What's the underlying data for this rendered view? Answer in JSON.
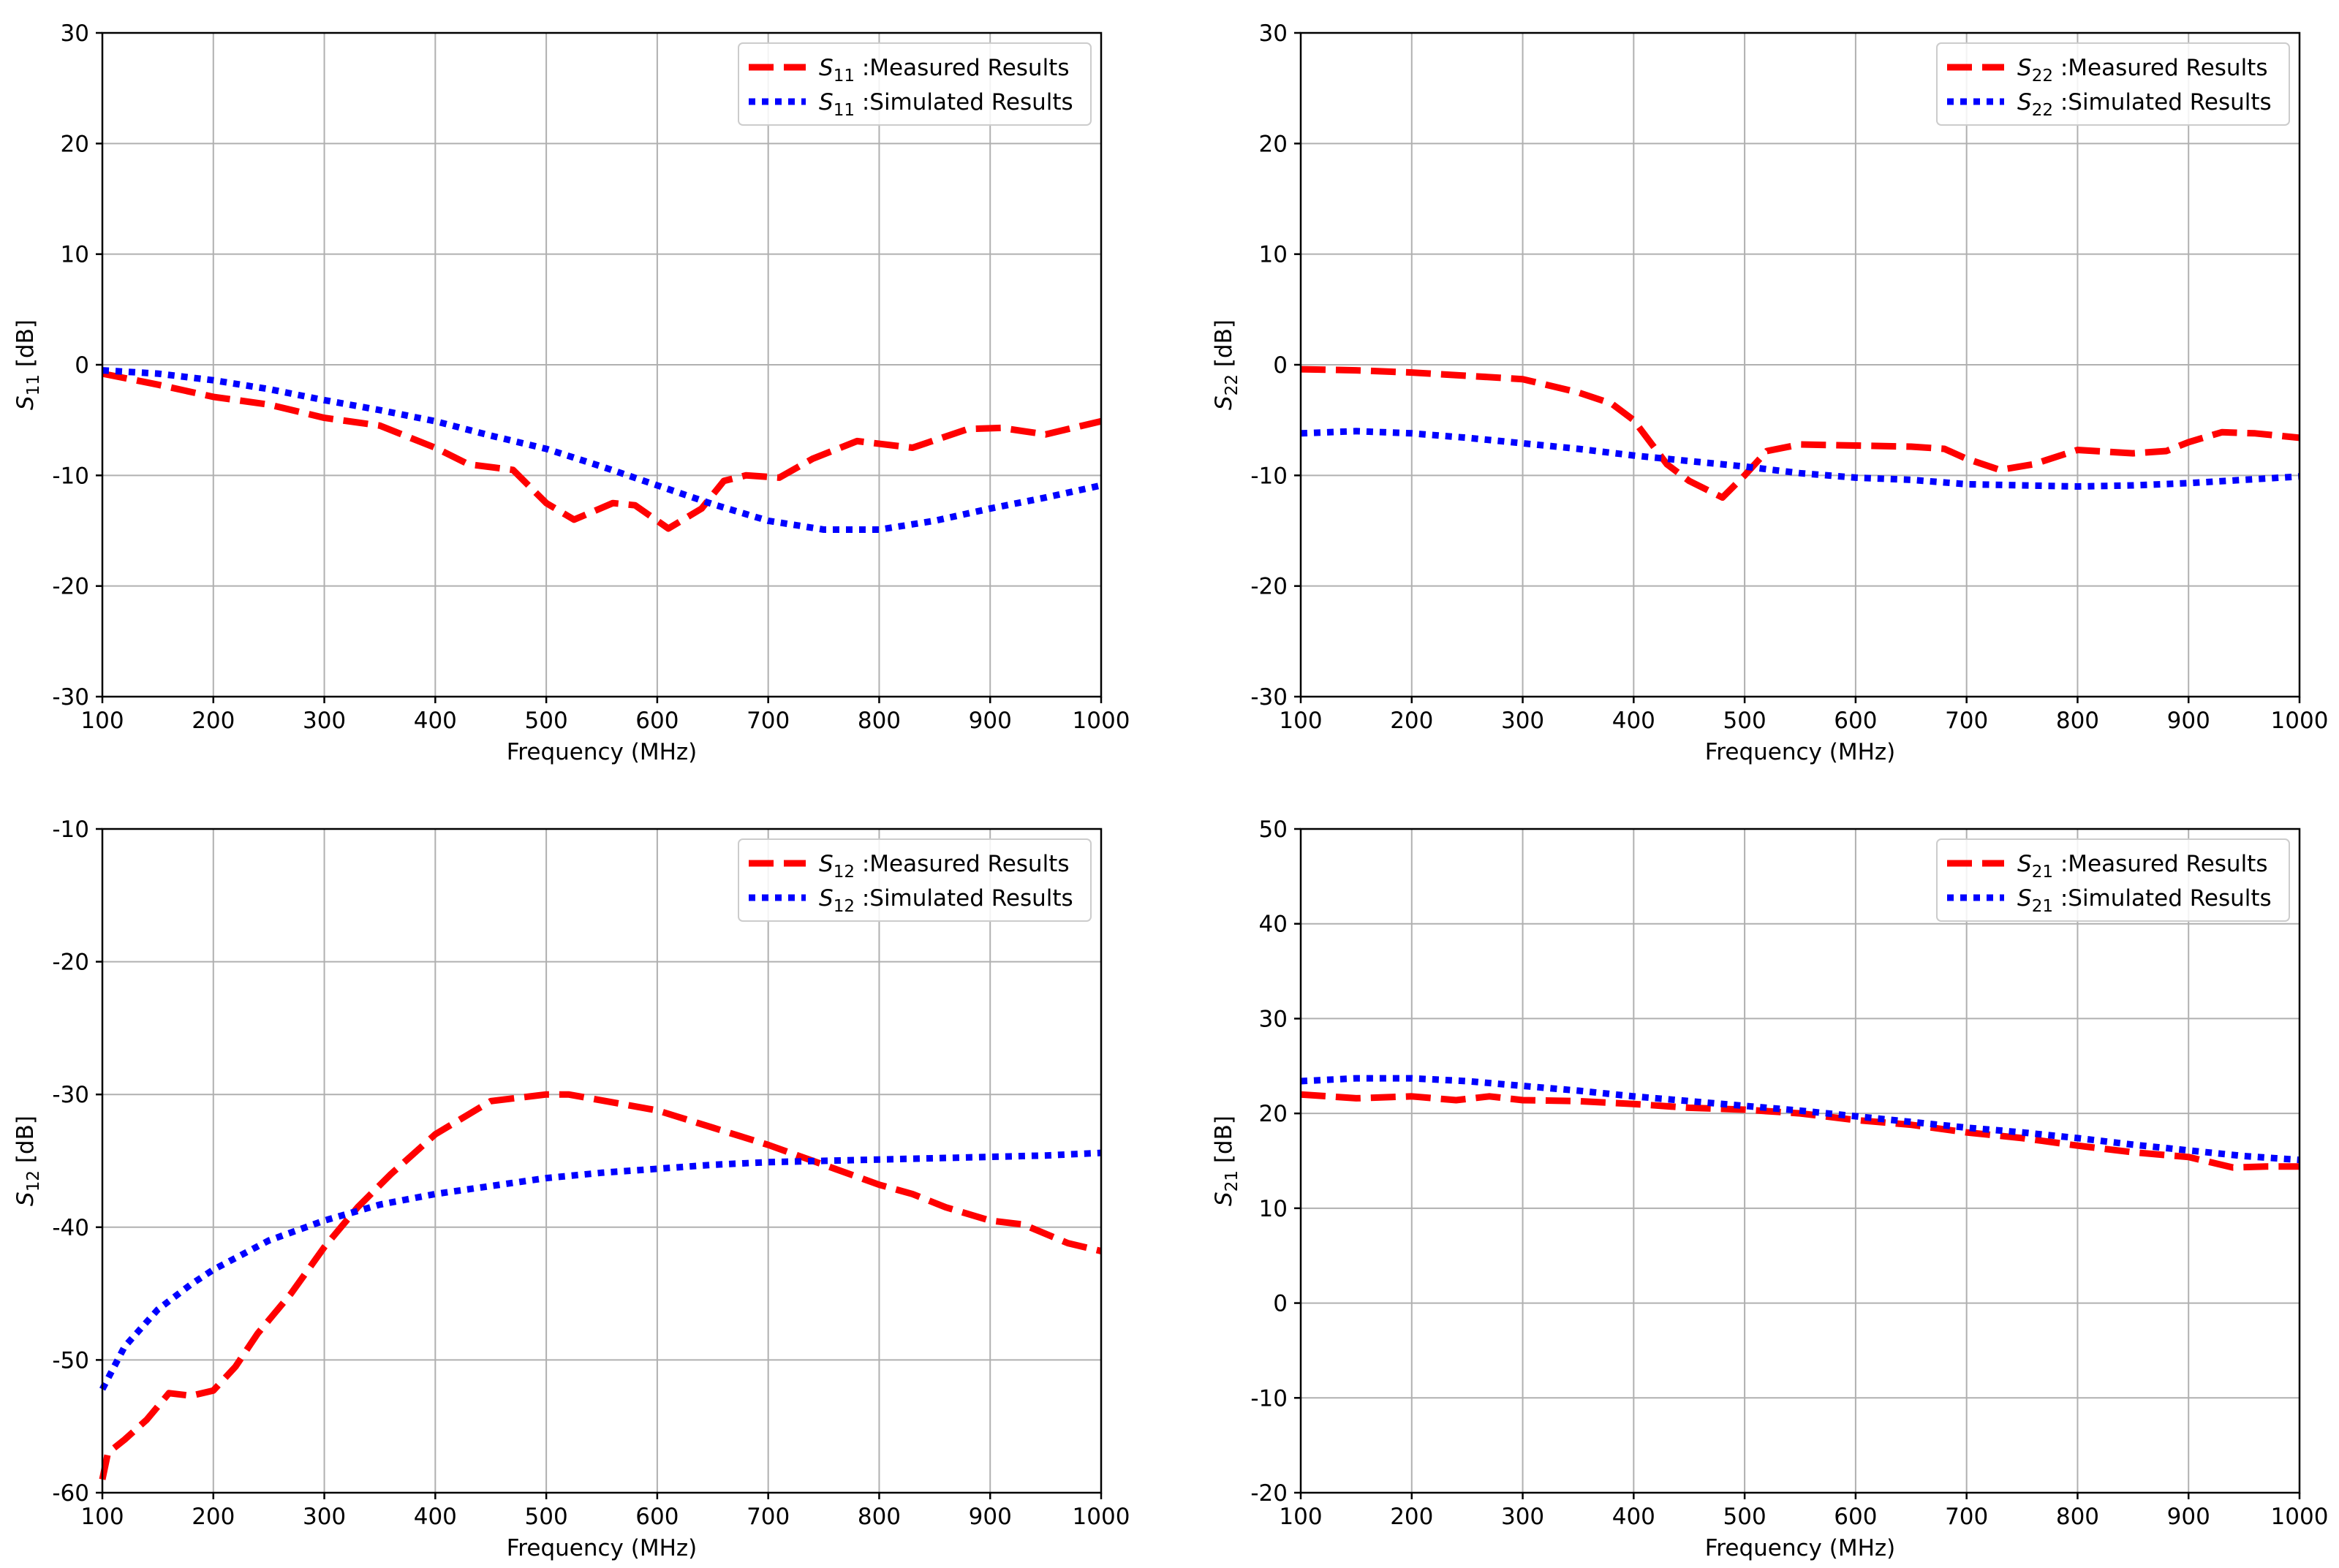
{
  "colors": {
    "measured": "#ff0000",
    "simulated": "#0000ff"
  },
  "chart_data": [
    {
      "id": "s11",
      "type": "line",
      "ylabel": {
        "main": "S",
        "sub": "11",
        "unit": " [dB]"
      },
      "xlabel": "Frequency (MHz)",
      "xlim": [
        100,
        1000
      ],
      "ylim": [
        -30,
        30
      ],
      "xticks": [
        100,
        200,
        300,
        400,
        500,
        600,
        700,
        800,
        900,
        1000
      ],
      "yticks": [
        -30,
        -20,
        -10,
        0,
        10,
        20,
        30
      ],
      "legend": "top-right",
      "series": [
        {
          "name": "Measured",
          "label": ":Measured Results",
          "style": "dashed",
          "color": "#ff0000",
          "x": [
            100,
            150,
            200,
            250,
            300,
            350,
            400,
            430,
            470,
            500,
            525,
            560,
            580,
            610,
            640,
            660,
            680,
            710,
            740,
            780,
            830,
            880,
            910,
            950,
            1000
          ],
          "y": [
            -0.8,
            -1.8,
            -2.9,
            -3.6,
            -4.8,
            -5.5,
            -7.5,
            -9,
            -9.5,
            -12.5,
            -14,
            -12.5,
            -12.7,
            -14.8,
            -13,
            -10.5,
            -10,
            -10.2,
            -8.5,
            -6.9,
            -7.5,
            -5.8,
            -5.7,
            -6.3,
            -5.1
          ]
        },
        {
          "name": "Simulated",
          "label": ":Simulated Results",
          "style": "dotted",
          "color": "#0000ff",
          "x": [
            100,
            150,
            200,
            250,
            300,
            350,
            400,
            450,
            500,
            550,
            600,
            650,
            700,
            750,
            800,
            850,
            900,
            950,
            1000
          ],
          "y": [
            -0.5,
            -0.8,
            -1.4,
            -2.2,
            -3.2,
            -4.1,
            -5.1,
            -6.4,
            -7.6,
            -9.2,
            -10.9,
            -12.6,
            -14.1,
            -14.9,
            -14.9,
            -14.1,
            -13,
            -12,
            -10.9
          ]
        }
      ]
    },
    {
      "id": "s22",
      "type": "line",
      "ylabel": {
        "main": "S",
        "sub": "22",
        "unit": " [dB]"
      },
      "xlabel": "Frequency (MHz)",
      "xlim": [
        100,
        1000
      ],
      "ylim": [
        -30,
        30
      ],
      "xticks": [
        100,
        200,
        300,
        400,
        500,
        600,
        700,
        800,
        900,
        1000
      ],
      "yticks": [
        -30,
        -20,
        -10,
        0,
        10,
        20,
        30
      ],
      "legend": "top-right",
      "series": [
        {
          "name": "Measured",
          "label": ":Measured Results",
          "style": "dashed",
          "color": "#ff0000",
          "x": [
            100,
            150,
            200,
            250,
            300,
            350,
            380,
            400,
            430,
            450,
            480,
            500,
            520,
            550,
            600,
            650,
            680,
            700,
            730,
            760,
            800,
            850,
            880,
            900,
            930,
            960,
            1000
          ],
          "y": [
            -0.4,
            -0.5,
            -0.7,
            -1.0,
            -1.3,
            -2.5,
            -3.5,
            -5,
            -9,
            -10.5,
            -12,
            -10,
            -7.8,
            -7.2,
            -7.3,
            -7.4,
            -7.6,
            -8.5,
            -9.5,
            -9,
            -7.7,
            -8,
            -7.8,
            -7,
            -6.1,
            -6.2,
            -6.6
          ]
        },
        {
          "name": "Simulated",
          "label": ":Simulated Results",
          "style": "dotted",
          "color": "#0000ff",
          "x": [
            100,
            150,
            200,
            250,
            300,
            350,
            400,
            450,
            500,
            550,
            600,
            650,
            700,
            750,
            800,
            850,
            900,
            950,
            1000
          ],
          "y": [
            -6.2,
            -6.0,
            -6.2,
            -6.6,
            -7.1,
            -7.6,
            -8.2,
            -8.7,
            -9.2,
            -9.8,
            -10.2,
            -10.4,
            -10.8,
            -10.9,
            -11,
            -10.9,
            -10.7,
            -10.4,
            -10.1
          ]
        }
      ]
    },
    {
      "id": "s12",
      "type": "line",
      "ylabel": {
        "main": "S",
        "sub": "12",
        "unit": " [dB]"
      },
      "xlabel": "Frequency (MHz)",
      "xlim": [
        100,
        1000
      ],
      "ylim": [
        -60,
        -10
      ],
      "xticks": [
        100,
        200,
        300,
        400,
        500,
        600,
        700,
        800,
        900,
        1000
      ],
      "yticks": [
        -60,
        -50,
        -40,
        -30,
        -20,
        -10
      ],
      "legend": "top-right",
      "series": [
        {
          "name": "Measured",
          "label": ":Measured Results",
          "style": "dashed",
          "color": "#ff0000",
          "x": [
            100,
            105,
            120,
            140,
            160,
            180,
            200,
            220,
            240,
            270,
            300,
            330,
            360,
            400,
            450,
            500,
            520,
            560,
            600,
            650,
            700,
            750,
            800,
            830,
            860,
            900,
            930,
            970,
            1000
          ],
          "y": [
            -59,
            -57,
            -56,
            -54.5,
            -52.5,
            -52.7,
            -52.3,
            -50.5,
            -48,
            -45,
            -41.5,
            -38.5,
            -36,
            -33,
            -30.5,
            -30,
            -30,
            -30.6,
            -31.2,
            -32.5,
            -33.8,
            -35.3,
            -36.8,
            -37.5,
            -38.5,
            -39.5,
            -39.8,
            -41.2,
            -41.8
          ]
        },
        {
          "name": "Simulated",
          "label": ":Simulated Results",
          "style": "dotted",
          "color": "#0000ff",
          "x": [
            100,
            120,
            150,
            180,
            200,
            250,
            300,
            350,
            400,
            450,
            500,
            550,
            600,
            650,
            700,
            750,
            800,
            850,
            900,
            950,
            1000
          ],
          "y": [
            -52.2,
            -49,
            -46.2,
            -44.3,
            -43.2,
            -41,
            -39.5,
            -38.3,
            -37.5,
            -36.9,
            -36.3,
            -35.9,
            -35.6,
            -35.3,
            -35.1,
            -35,
            -34.9,
            -34.8,
            -34.7,
            -34.6,
            -34.4
          ]
        }
      ]
    },
    {
      "id": "s21",
      "type": "line",
      "ylabel": {
        "main": "S",
        "sub": "21",
        "unit": " [dB]"
      },
      "xlabel": "Frequency (MHz)",
      "xlim": [
        100,
        1000
      ],
      "ylim": [
        -20,
        50
      ],
      "xticks": [
        100,
        200,
        300,
        400,
        500,
        600,
        700,
        800,
        900,
        1000
      ],
      "yticks": [
        -20,
        -10,
        0,
        10,
        20,
        30,
        40,
        50
      ],
      "legend": "top-right",
      "series": [
        {
          "name": "Measured",
          "label": ":Measured Results",
          "style": "dashed",
          "color": "#ff0000",
          "x": [
            100,
            150,
            200,
            240,
            270,
            300,
            350,
            400,
            450,
            500,
            550,
            600,
            650,
            700,
            750,
            800,
            850,
            900,
            940,
            970,
            1000
          ],
          "y": [
            22,
            21.6,
            21.8,
            21.4,
            21.8,
            21.4,
            21.3,
            21,
            20.6,
            20.4,
            20,
            19.3,
            18.8,
            18,
            17.4,
            16.6,
            15.9,
            15.4,
            14.3,
            14.4,
            14.4
          ]
        },
        {
          "name": "Simulated",
          "label": ":Simulated Results",
          "style": "dotted",
          "color": "#0000ff",
          "x": [
            100,
            150,
            200,
            250,
            300,
            350,
            400,
            450,
            500,
            550,
            600,
            650,
            700,
            750,
            800,
            850,
            900,
            950,
            1000
          ],
          "y": [
            23.4,
            23.7,
            23.7,
            23.4,
            22.9,
            22.4,
            21.8,
            21.3,
            20.8,
            20.3,
            19.7,
            19.1,
            18.5,
            18,
            17.4,
            16.7,
            16.1,
            15.5,
            15.1
          ]
        }
      ]
    }
  ]
}
